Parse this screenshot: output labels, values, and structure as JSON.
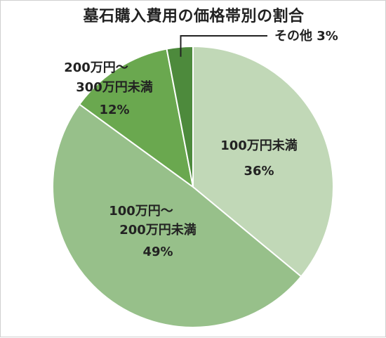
{
  "chart_data": {
    "type": "pie",
    "title": "墓石購入費用の価格帯別の割合",
    "slices": [
      {
        "label_lines": [
          "100万円未満"
        ],
        "value": 36,
        "value_label": "36%",
        "color": "#c1d8b7"
      },
      {
        "label_lines": [
          "100万円～",
          "200万円未満"
        ],
        "value": 49,
        "value_label": "49%",
        "color": "#97c08a"
      },
      {
        "label_lines": [
          "200万円～",
          "300万円未満"
        ],
        "value": 12,
        "value_label": "12%",
        "color": "#6aa84f"
      },
      {
        "label_lines": [
          "その他"
        ],
        "value": 3,
        "value_label": "3%",
        "color": "#4d8a3c"
      }
    ],
    "start_angle_deg": 0,
    "direction": "clockwise",
    "legend": "none"
  }
}
